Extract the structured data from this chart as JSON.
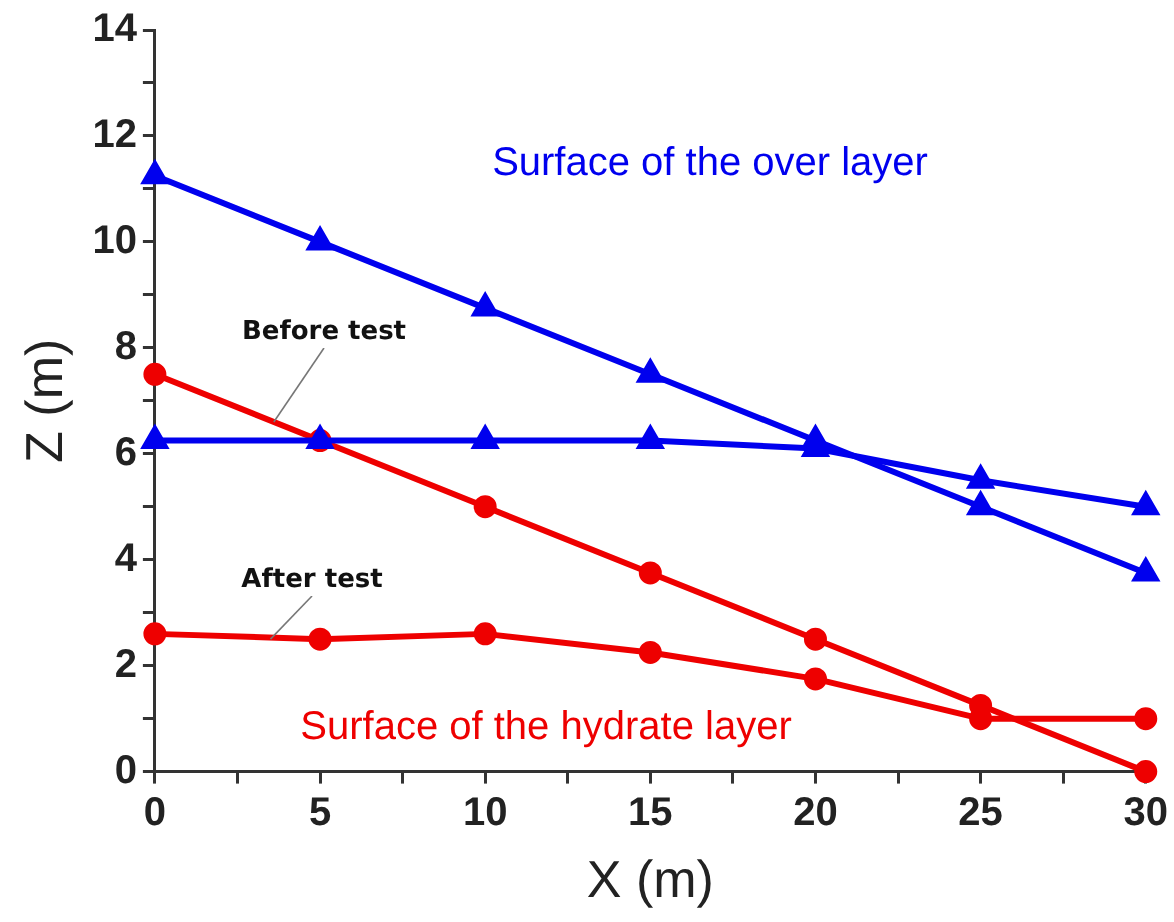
{
  "chart_data": {
    "type": "line",
    "xlabel": "X (m)",
    "ylabel": "Z (m)",
    "x": [
      0,
      5,
      10,
      15,
      20,
      25,
      30
    ],
    "series": [
      {
        "color": "#0000ee",
        "marker": "triangle",
        "values": [
          11.25,
          10,
          8.75,
          7.5,
          6.25,
          5,
          3.75
        ]
      },
      {
        "color": "#0000ee",
        "marker": "triangle",
        "values": [
          6.25,
          6.25,
          6.25,
          6.25,
          6.1,
          5.5,
          5
        ]
      },
      {
        "color": "#ee0000",
        "marker": "circle",
        "values": [
          7.5,
          6.25,
          5,
          3.75,
          2.5,
          1.25,
          0
        ]
      },
      {
        "color": "#ee0000",
        "marker": "circle",
        "values": [
          2.6,
          2.5,
          2.6,
          2.25,
          1.75,
          1,
          1
        ]
      }
    ],
    "xlim": [
      0,
      30
    ],
    "xticks": [
      0,
      5,
      10,
      15,
      20,
      25,
      30
    ],
    "ylim": [
      0,
      14
    ],
    "yticks": [
      0,
      2,
      4,
      6,
      8,
      10,
      12,
      14
    ],
    "grid": false,
    "legend": false,
    "annotations": [
      "Surface of the over layer",
      {
        "text": "Before test",
        "x": 3.6,
        "y": 6.6
      },
      {
        "text": "After test",
        "x": 3.5,
        "y": 2.5
      },
      "Surface of the hydrate layer"
    ]
  }
}
